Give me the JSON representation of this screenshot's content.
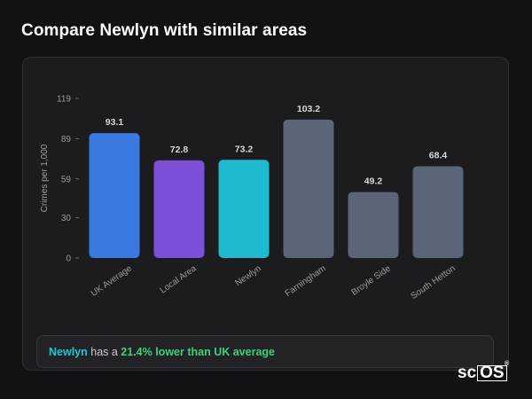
{
  "page": {
    "title": "Compare Newlyn with similar areas"
  },
  "chart_data": {
    "type": "bar",
    "ylabel": "Crimes per 1,000",
    "xlabel": "",
    "ylim": [
      0,
      119
    ],
    "yticks": [
      0,
      30,
      59,
      89,
      119
    ],
    "categories": [
      "UK Average",
      "Local Area",
      "Newlyn",
      "Farningham",
      "Broyle Side",
      "South Hetton"
    ],
    "values": [
      93.1,
      72.8,
      73.2,
      103.2,
      49.2,
      68.4
    ],
    "value_labels": [
      "93.1",
      "72.8",
      "73.2",
      "103.2",
      "49.2",
      "68.4"
    ],
    "colors": [
      "#3a79df",
      "#7b4fd6",
      "#1fbad0",
      "#5a6577",
      "#5a6577",
      "#5a6577"
    ],
    "grid": false,
    "legend": "none"
  },
  "summary": {
    "area_name": "Newlyn",
    "text_mid": " has a ",
    "difference": "21.4% lower than UK average"
  },
  "logo": {
    "prefix": "sc",
    "boxed": "OS",
    "mark": "®"
  },
  "colors": {
    "background": "#121215",
    "card": "#1c1c1f",
    "accent_area": "#1fc7d4",
    "accent_positive": "#3fd07a"
  }
}
